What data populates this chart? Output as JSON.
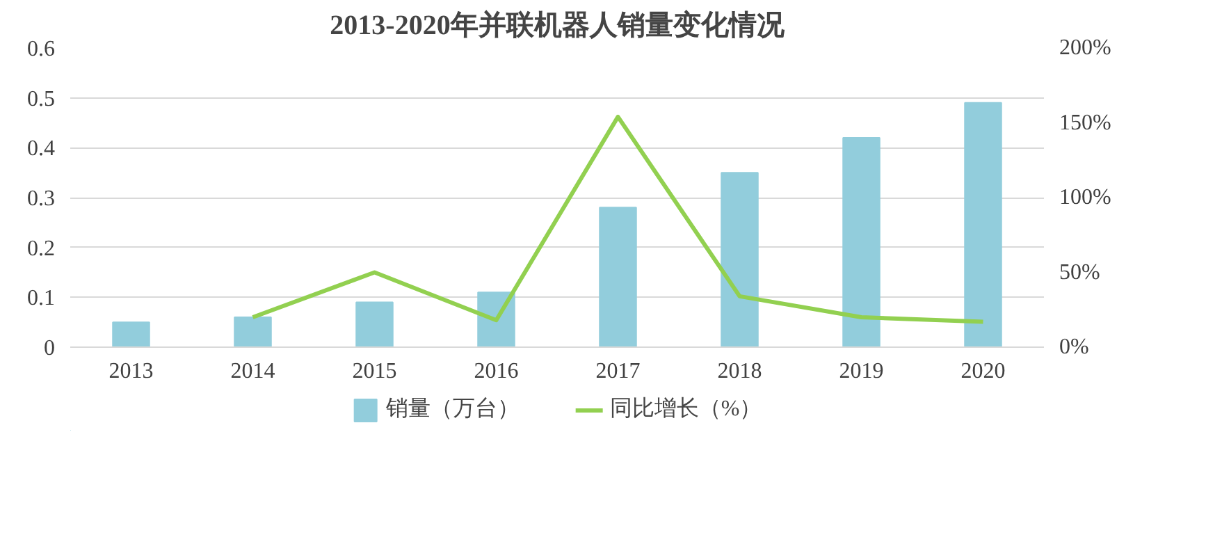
{
  "chart_data": {
    "type": "bar",
    "title": "2013-2020年并联机器人销量变化情况",
    "categories": [
      "2013",
      "2014",
      "2015",
      "2016",
      "2017",
      "2018",
      "2019",
      "2020"
    ],
    "series": [
      {
        "name": "销量（万台）",
        "color": "#92cddc",
        "values": [
          0.05,
          0.06,
          0.09,
          0.11,
          0.28,
          0.35,
          0.42,
          0.49
        ]
      },
      {
        "name": "同比增长（%）",
        "type": "line",
        "axis": "y2",
        "color": "#92d050",
        "values": [
          null,
          20,
          50,
          18,
          154,
          34,
          20,
          17
        ]
      }
    ],
    "ylim": [
      0,
      0.6
    ],
    "yticks": [
      0,
      0.1,
      0.2,
      0.3,
      0.4,
      0.5,
      0.6
    ],
    "y2lim": [
      0,
      200
    ],
    "y2ticks": [
      {
        "value": 0,
        "label": "0%"
      },
      {
        "value": 50,
        "label": "50%"
      },
      {
        "value": 100,
        "label": "100%"
      },
      {
        "value": 150,
        "label": "150%"
      },
      {
        "value": 200,
        "label": "200%"
      }
    ],
    "grid": "y",
    "legend": "bottom"
  }
}
